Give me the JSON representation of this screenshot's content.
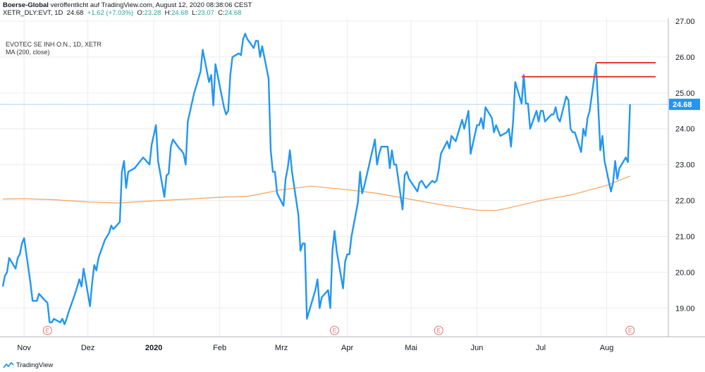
{
  "header": {
    "publisher": "Boerse-Global",
    "published_text": "veröffentlicht auf TradingView.com, August 12, 2020 08:38:06 CEST",
    "symbol": "XETR_DLY:EVT, 1D",
    "last": "24.68",
    "change": "+1.62 (+7.03%)",
    "ohlc": {
      "o_label": "O:",
      "o": "23.28",
      "h_label": "H:",
      "h": "24.68",
      "l_label": "L:",
      "l": "23.07",
      "c_label": "C:",
      "c": "24.68"
    }
  },
  "legend": {
    "title": "EVOTEC SE INH O.N., 1D, XETR",
    "ma": "MA (200, close)"
  },
  "footer": {
    "brand": "TradingView",
    "logo_icon": "tradingview-logo-icon"
  },
  "colors": {
    "price": "#2196f3",
    "ma": "#f5a15a",
    "resistance": "#e53935",
    "last_tag": "#2196f3",
    "grid": "#ececec",
    "earnings": "#e57373"
  },
  "chart_data": {
    "type": "line",
    "title": "EVOTEC SE INH O.N., 1D, XETR",
    "ylim": [
      18.2,
      27.0
    ],
    "yticks": [
      19.0,
      20.0,
      21.0,
      22.0,
      23.0,
      24.0,
      25.0,
      26.0,
      27.0
    ],
    "ytick_labels": [
      "19.00",
      "20.00",
      "21.00",
      "22.00",
      "23.00",
      "24.00",
      "25.00",
      "26.00",
      "27.00"
    ],
    "x_range": [
      "2019-10-22",
      "2020-08-30"
    ],
    "x_tick_dates": [
      "2019-11-01",
      "2019-12-01",
      "2020-01-01",
      "2020-02-01",
      "2020-03-01",
      "2020-04-01",
      "2020-05-01",
      "2020-06-01",
      "2020-07-01",
      "2020-08-01"
    ],
    "x_tick_labels": [
      "Nov",
      "Dez",
      "2020",
      "Feb",
      "Mrz",
      "Apr",
      "Mai",
      "Jun",
      "Jul",
      "Aug"
    ],
    "grid": true,
    "last_value": 24.68,
    "last_label": "24.68",
    "series": [
      {
        "kind": "price",
        "points": [
          [
            "2019-10-22",
            19.6
          ],
          [
            "2019-10-23",
            19.9
          ],
          [
            "2019-10-24",
            20.0
          ],
          [
            "2019-10-25",
            20.4
          ],
          [
            "2019-10-28",
            20.1
          ],
          [
            "2019-10-29",
            20.4
          ],
          [
            "2019-10-30",
            20.5
          ],
          [
            "2019-10-31",
            20.8
          ],
          [
            "2019-11-01",
            20.95
          ],
          [
            "2019-11-04",
            19.7
          ],
          [
            "2019-11-05",
            19.2
          ],
          [
            "2019-11-06",
            19.2
          ],
          [
            "2019-11-07",
            19.2
          ],
          [
            "2019-11-08",
            19.4
          ],
          [
            "2019-11-11",
            19.2
          ],
          [
            "2019-11-12",
            19.15
          ],
          [
            "2019-11-13",
            18.6
          ],
          [
            "2019-11-14",
            18.6
          ],
          [
            "2019-11-15",
            18.7
          ],
          [
            "2019-11-18",
            18.6
          ],
          [
            "2019-11-19",
            18.7
          ],
          [
            "2019-11-20",
            18.55
          ],
          [
            "2019-11-21",
            18.7
          ],
          [
            "2019-11-22",
            18.9
          ],
          [
            "2019-11-25",
            19.4
          ],
          [
            "2019-11-26",
            19.6
          ],
          [
            "2019-11-27",
            19.8
          ],
          [
            "2019-11-28",
            19.6
          ],
          [
            "2019-11-29",
            20.1
          ],
          [
            "2019-12-02",
            19.05
          ],
          [
            "2019-12-03",
            19.7
          ],
          [
            "2019-12-04",
            20.2
          ],
          [
            "2019-12-05",
            20.05
          ],
          [
            "2019-12-06",
            20.4
          ],
          [
            "2019-12-09",
            20.9
          ],
          [
            "2019-12-10",
            21.0
          ],
          [
            "2019-12-11",
            21.1
          ],
          [
            "2019-12-12",
            21.3
          ],
          [
            "2019-12-13",
            21.2
          ],
          [
            "2019-12-16",
            21.4
          ],
          [
            "2019-12-17",
            22.8
          ],
          [
            "2019-12-18",
            23.1
          ],
          [
            "2019-12-19",
            22.35
          ],
          [
            "2019-12-20",
            22.8
          ],
          [
            "2019-12-23",
            22.9
          ],
          [
            "2019-12-27",
            23.2
          ],
          [
            "2019-12-30",
            23.0
          ],
          [
            "2019-12-31",
            23.55
          ],
          [
            "2020-01-02",
            24.1
          ],
          [
            "2020-01-03",
            23.1
          ],
          [
            "2020-01-06",
            22.1
          ],
          [
            "2020-01-07",
            22.7
          ],
          [
            "2020-01-08",
            22.75
          ],
          [
            "2020-01-09",
            23.5
          ],
          [
            "2020-01-10",
            23.7
          ],
          [
            "2020-01-13",
            23.45
          ],
          [
            "2020-01-14",
            23.4
          ],
          [
            "2020-01-15",
            23.3
          ],
          [
            "2020-01-16",
            23.0
          ],
          [
            "2020-01-17",
            24.2
          ],
          [
            "2020-01-20",
            25.0
          ],
          [
            "2020-01-21",
            25.2
          ],
          [
            "2020-01-22",
            25.4
          ],
          [
            "2020-01-23",
            25.6
          ],
          [
            "2020-01-24",
            26.2
          ],
          [
            "2020-01-27",
            25.3
          ],
          [
            "2020-01-28",
            25.5
          ],
          [
            "2020-01-29",
            24.65
          ],
          [
            "2020-01-30",
            25.8
          ],
          [
            "2020-01-31",
            25.5
          ],
          [
            "2020-02-03",
            24.6
          ],
          [
            "2020-02-04",
            24.4
          ],
          [
            "2020-02-05",
            24.5
          ],
          [
            "2020-02-06",
            25.5
          ],
          [
            "2020-02-07",
            26.0
          ],
          [
            "2020-02-10",
            26.1
          ],
          [
            "2020-02-11",
            26.05
          ],
          [
            "2020-02-12",
            26.5
          ],
          [
            "2020-02-13",
            26.65
          ],
          [
            "2020-02-14",
            26.5
          ],
          [
            "2020-02-17",
            26.25
          ],
          [
            "2020-02-18",
            26.45
          ],
          [
            "2020-02-19",
            26.45
          ],
          [
            "2020-02-20",
            26.0
          ],
          [
            "2020-02-21",
            26.3
          ],
          [
            "2020-02-24",
            25.4
          ],
          [
            "2020-02-25",
            23.4
          ],
          [
            "2020-02-26",
            22.8
          ],
          [
            "2020-02-27",
            22.8
          ],
          [
            "2020-02-28",
            22.2
          ],
          [
            "2020-03-02",
            21.85
          ],
          [
            "2020-03-03",
            22.6
          ],
          [
            "2020-03-04",
            22.9
          ],
          [
            "2020-03-05",
            23.4
          ],
          [
            "2020-03-06",
            22.8
          ],
          [
            "2020-03-09",
            21.6
          ],
          [
            "2020-03-10",
            20.6
          ],
          [
            "2020-03-11",
            20.8
          ],
          [
            "2020-03-12",
            20.8
          ],
          [
            "2020-03-13",
            18.7
          ],
          [
            "2020-03-16",
            19.3
          ],
          [
            "2020-03-17",
            19.5
          ],
          [
            "2020-03-18",
            19.8
          ],
          [
            "2020-03-19",
            19.0
          ],
          [
            "2020-03-20",
            19.3
          ],
          [
            "2020-03-23",
            19.5
          ],
          [
            "2020-03-24",
            19.0
          ],
          [
            "2020-03-25",
            20.6
          ],
          [
            "2020-03-26",
            21.15
          ],
          [
            "2020-03-27",
            20.6
          ],
          [
            "2020-03-30",
            19.55
          ],
          [
            "2020-03-31",
            20.3
          ],
          [
            "2020-04-01",
            20.5
          ],
          [
            "2020-04-02",
            20.5
          ],
          [
            "2020-04-03",
            21.0
          ],
          [
            "2020-04-06",
            21.95
          ],
          [
            "2020-04-07",
            22.8
          ],
          [
            "2020-04-08",
            22.2
          ],
          [
            "2020-04-09",
            22.4
          ],
          [
            "2020-04-14",
            23.7
          ],
          [
            "2020-04-15",
            23.0
          ],
          [
            "2020-04-16",
            23.3
          ],
          [
            "2020-04-17",
            23.5
          ],
          [
            "2020-04-20",
            23.5
          ],
          [
            "2020-04-21",
            22.9
          ],
          [
            "2020-04-22",
            23.4
          ],
          [
            "2020-04-23",
            23.0
          ],
          [
            "2020-04-24",
            23.0
          ],
          [
            "2020-04-27",
            21.75
          ],
          [
            "2020-04-28",
            22.7
          ],
          [
            "2020-04-29",
            22.8
          ],
          [
            "2020-04-30",
            22.6
          ],
          [
            "2020-05-04",
            22.25
          ],
          [
            "2020-05-05",
            22.5
          ],
          [
            "2020-05-06",
            22.55
          ],
          [
            "2020-05-07",
            22.45
          ],
          [
            "2020-05-08",
            22.35
          ],
          [
            "2020-05-11",
            22.55
          ],
          [
            "2020-05-12",
            22.5
          ],
          [
            "2020-05-13",
            22.55
          ],
          [
            "2020-05-14",
            22.85
          ],
          [
            "2020-05-15",
            23.3
          ],
          [
            "2020-05-18",
            23.65
          ],
          [
            "2020-05-19",
            23.45
          ],
          [
            "2020-05-20",
            23.8
          ],
          [
            "2020-05-22",
            23.65
          ],
          [
            "2020-05-25",
            24.25
          ],
          [
            "2020-05-26",
            24.0
          ],
          [
            "2020-05-27",
            24.25
          ],
          [
            "2020-05-28",
            24.5
          ],
          [
            "2020-05-29",
            23.3
          ],
          [
            "2020-06-01",
            24.1
          ],
          [
            "2020-06-02",
            24.1
          ],
          [
            "2020-06-03",
            24.3
          ],
          [
            "2020-06-04",
            24.0
          ],
          [
            "2020-06-05",
            24.6
          ],
          [
            "2020-06-08",
            24.3
          ],
          [
            "2020-06-09",
            23.9
          ],
          [
            "2020-06-10",
            24.1
          ],
          [
            "2020-06-12",
            23.8
          ],
          [
            "2020-06-15",
            23.9
          ],
          [
            "2020-06-16",
            24.0
          ],
          [
            "2020-06-17",
            23.5
          ],
          [
            "2020-06-18",
            24.2
          ],
          [
            "2020-06-19",
            25.3
          ],
          [
            "2020-06-22",
            24.7
          ],
          [
            "2020-06-23",
            25.5
          ],
          [
            "2020-06-24",
            24.7
          ],
          [
            "2020-06-25",
            24.7
          ],
          [
            "2020-06-26",
            24.0
          ],
          [
            "2020-06-29",
            24.5
          ],
          [
            "2020-06-30",
            24.2
          ],
          [
            "2020-07-01",
            24.5
          ],
          [
            "2020-07-02",
            24.5
          ],
          [
            "2020-07-03",
            24.2
          ],
          [
            "2020-07-06",
            24.4
          ],
          [
            "2020-07-07",
            24.4
          ],
          [
            "2020-07-08",
            24.6
          ],
          [
            "2020-07-09",
            24.3
          ],
          [
            "2020-07-10",
            24.2
          ],
          [
            "2020-07-13",
            24.9
          ],
          [
            "2020-07-14",
            24.8
          ],
          [
            "2020-07-15",
            24.0
          ],
          [
            "2020-07-16",
            23.9
          ],
          [
            "2020-07-17",
            23.9
          ],
          [
            "2020-07-20",
            23.35
          ],
          [
            "2020-07-21",
            24.0
          ],
          [
            "2020-07-22",
            23.8
          ],
          [
            "2020-07-23",
            24.3
          ],
          [
            "2020-07-24",
            24.5
          ],
          [
            "2020-07-27",
            25.8
          ],
          [
            "2020-07-28",
            24.65
          ],
          [
            "2020-07-29",
            23.4
          ],
          [
            "2020-07-30",
            23.8
          ],
          [
            "2020-07-31",
            23.1
          ],
          [
            "2020-08-03",
            22.25
          ],
          [
            "2020-08-04",
            22.5
          ],
          [
            "2020-08-05",
            23.1
          ],
          [
            "2020-08-06",
            22.6
          ],
          [
            "2020-08-07",
            22.9
          ],
          [
            "2020-08-10",
            23.2
          ],
          [
            "2020-08-11",
            23.07
          ],
          [
            "2020-08-12",
            24.68
          ]
        ]
      },
      {
        "kind": "ma200",
        "points": [
          [
            "2019-10-22",
            22.04
          ],
          [
            "2019-11-01",
            22.05
          ],
          [
            "2019-11-15",
            22.02
          ],
          [
            "2019-12-01",
            21.96
          ],
          [
            "2019-12-15",
            21.93
          ],
          [
            "2020-01-01",
            21.99
          ],
          [
            "2020-01-15",
            22.03
          ],
          [
            "2020-02-01",
            22.09
          ],
          [
            "2020-02-15",
            22.12
          ],
          [
            "2020-03-01",
            22.3
          ],
          [
            "2020-03-15",
            22.4
          ],
          [
            "2020-04-01",
            22.3
          ],
          [
            "2020-04-15",
            22.2
          ],
          [
            "2020-05-01",
            22.03
          ],
          [
            "2020-05-15",
            21.88
          ],
          [
            "2020-06-01",
            21.73
          ],
          [
            "2020-06-10",
            21.72
          ],
          [
            "2020-06-15",
            21.78
          ],
          [
            "2020-07-01",
            22.0
          ],
          [
            "2020-07-15",
            22.15
          ],
          [
            "2020-08-01",
            22.42
          ],
          [
            "2020-08-12",
            22.68
          ]
        ]
      }
    ],
    "resistance_lines": [
      {
        "from": "2020-06-22",
        "to": "2020-08-24",
        "value": 25.45
      },
      {
        "from": "2020-07-27",
        "to": "2020-08-24",
        "value": 25.84
      }
    ],
    "earnings_markers": [
      {
        "date": "2019-11-12",
        "label": "E"
      },
      {
        "date": "2020-03-26",
        "label": "E"
      },
      {
        "date": "2020-05-14",
        "label": "E"
      },
      {
        "date": "2020-08-12",
        "label": "E"
      }
    ]
  }
}
